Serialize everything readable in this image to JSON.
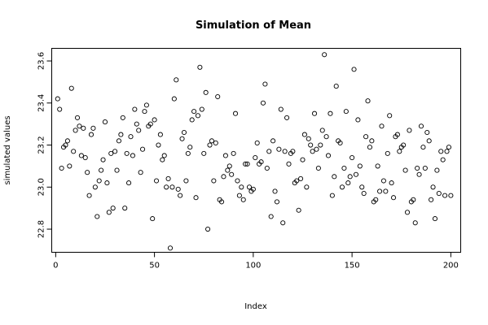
{
  "chart_data": {
    "type": "scatter",
    "title": "Simulation of Mean",
    "xlabel": "Index",
    "ylabel": "simulated values",
    "xlim": [
      -2,
      205
    ],
    "ylim": [
      22.69,
      23.66
    ],
    "xticks": [
      0,
      50,
      100,
      150,
      200
    ],
    "xtick_labels": [
      "0",
      "50",
      "100",
      "150",
      "200"
    ],
    "yticks": [
      22.8,
      23.0,
      23.2,
      23.4,
      23.6
    ],
    "ytick_labels": [
      "22.8",
      "23.0",
      "23.2",
      "23.4",
      "23.6"
    ],
    "grid": false,
    "marker": "open-circle",
    "x": [
      1,
      2,
      3,
      4,
      5,
      6,
      7,
      8,
      9,
      10,
      11,
      12,
      13,
      14,
      15,
      16,
      17,
      18,
      19,
      20,
      21,
      22,
      23,
      24,
      25,
      26,
      27,
      28,
      29,
      30,
      31,
      32,
      33,
      34,
      35,
      36,
      37,
      38,
      39,
      40,
      41,
      42,
      43,
      44,
      45,
      46,
      47,
      48,
      49,
      50,
      51,
      52,
      53,
      54,
      55,
      56,
      57,
      58,
      59,
      60,
      61,
      62,
      63,
      64,
      65,
      66,
      67,
      68,
      69,
      70,
      71,
      72,
      73,
      74,
      75,
      76,
      77,
      78,
      79,
      80,
      81,
      82,
      83,
      84,
      85,
      86,
      87,
      88,
      89,
      90,
      91,
      92,
      93,
      94,
      95,
      96,
      97,
      98,
      99,
      100,
      101,
      102,
      103,
      104,
      105,
      106,
      107,
      108,
      109,
      110,
      111,
      112,
      113,
      114,
      115,
      116,
      117,
      118,
      119,
      120,
      121,
      122,
      123,
      124,
      125,
      126,
      127,
      128,
      129,
      130,
      131,
      132,
      133,
      134,
      135,
      136,
      137,
      138,
      139,
      140,
      141,
      142,
      143,
      144,
      145,
      146,
      147,
      148,
      149,
      150,
      151,
      152,
      153,
      154,
      155,
      156,
      157,
      158,
      159,
      160,
      161,
      162,
      163,
      164,
      165,
      166,
      167,
      168,
      169,
      170,
      171,
      172,
      173,
      174,
      175,
      176,
      177,
      178,
      179,
      180,
      181,
      182,
      183,
      184,
      185,
      186,
      187,
      188,
      189,
      190,
      191,
      192,
      193,
      194,
      195,
      196,
      197,
      198,
      199,
      200
    ],
    "y": [
      23.42,
      23.37,
      23.09,
      23.19,
      23.2,
      23.22,
      23.1,
      23.47,
      23.17,
      23.27,
      23.33,
      23.29,
      23.15,
      23.28,
      23.14,
      23.07,
      22.96,
      23.25,
      23.28,
      23.0,
      22.86,
      23.03,
      23.08,
      23.13,
      23.31,
      23.02,
      22.88,
      23.16,
      22.9,
      23.17,
      23.08,
      23.22,
      23.25,
      23.33,
      22.9,
      23.16,
      23.02,
      23.24,
      23.15,
      23.37,
      23.3,
      23.27,
      23.07,
      23.18,
      23.36,
      23.39,
      23.29,
      23.3,
      22.85,
      23.32,
      23.03,
      23.2,
      23.25,
      23.13,
      23.15,
      23.0,
      23.04,
      22.71,
      23.0,
      23.42,
      23.51,
      22.99,
      22.96,
      23.23,
      23.26,
      23.03,
      23.16,
      23.19,
      23.32,
      23.36,
      22.95,
      23.34,
      23.57,
      23.37,
      23.16,
      23.45,
      22.8,
      23.2,
      23.22,
      23.03,
      23.21,
      23.43,
      22.94,
      22.93,
      23.05,
      23.15,
      23.08,
      23.1,
      23.06,
      23.16,
      23.35,
      23.03,
      22.96,
      23.0,
      22.94,
      23.11,
      23.11,
      23.0,
      22.98,
      22.99,
      23.14,
      23.21,
      23.11,
      23.12,
      23.4,
      23.49,
      23.09,
      23.17,
      22.86,
      23.22,
      22.98,
      22.93,
      23.18,
      23.37,
      22.83,
      23.17,
      23.33,
      23.11,
      23.16,
      23.17,
      23.02,
      23.03,
      22.89,
      23.04,
      23.13,
      23.25,
      23.0,
      23.23,
      23.2,
      23.17,
      23.35,
      23.18,
      23.09,
      23.2,
      23.27,
      23.63,
      23.24,
      23.15,
      23.35,
      22.96,
      23.05,
      23.48,
      23.22,
      23.21,
      23.0,
      23.09,
      23.36,
      23.02,
      23.05,
      23.14,
      23.56,
      23.06,
      23.32,
      23.1,
      23.0,
      22.97,
      23.24,
      23.41,
      23.19,
      23.22,
      22.93,
      22.94,
      23.1,
      22.98,
      23.29,
      23.03,
      22.98,
      23.16,
      23.34,
      23.02,
      22.95,
      23.24,
      23.25,
      23.17,
      23.19,
      23.2,
      23.08,
      22.88,
      23.27,
      22.93,
      22.94,
      22.83,
      23.09,
      23.06,
      23.29,
      23.19,
      23.09,
      23.26,
      23.22,
      22.94,
      23.0,
      22.85,
      23.08,
      22.97,
      23.17,
      23.13,
      22.96,
      23.17,
      23.19,
      22.96
    ]
  }
}
